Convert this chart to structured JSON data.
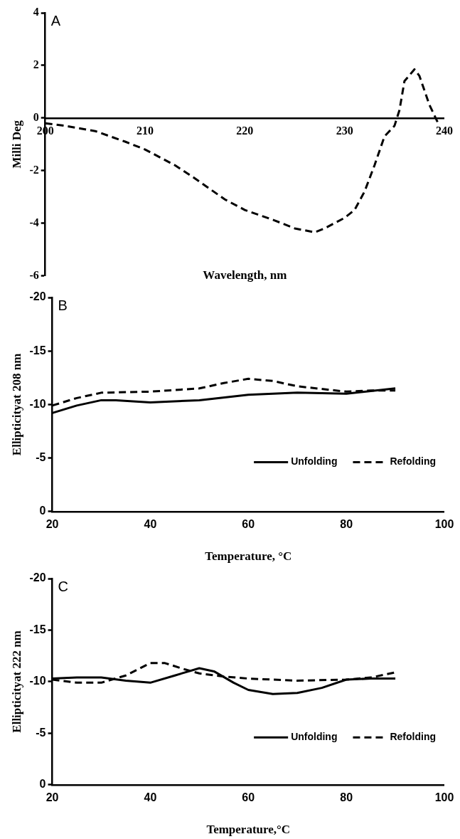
{
  "chart_data": [
    {
      "type": "line",
      "ylabel": "Milli Deg",
      "xlabel": "Wavelength, nm",
      "annotations": [
        "A"
      ],
      "xlim": [
        200,
        240
      ],
      "xticks": [
        200,
        210,
        220,
        230,
        240
      ],
      "ylim": [
        -6,
        4
      ],
      "yticks": [
        -6,
        -4,
        -2,
        0,
        2,
        4
      ],
      "grid": false,
      "legend": false,
      "marker": "none",
      "series": [
        {
          "color": "#000000",
          "line_style": "dashed",
          "x": [
            200,
            202,
            205,
            208,
            210,
            213,
            215,
            218,
            220,
            223,
            225,
            227,
            228,
            230,
            231,
            232,
            233,
            234,
            235,
            235.5,
            236,
            237,
            237.5,
            238.5,
            239.5
          ],
          "values": [
            -0.2,
            -0.3,
            -0.5,
            -0.9,
            -1.2,
            -1.8,
            -2.3,
            -3.1,
            -3.5,
            -3.9,
            -4.2,
            -4.35,
            -4.2,
            -3.8,
            -3.5,
            -2.8,
            -1.8,
            -0.7,
            -0.3,
            0.3,
            1.4,
            1.85,
            1.6,
            0.5,
            -0.3
          ]
        }
      ]
    },
    {
      "type": "line",
      "ylabel": "Ellipticityat 208 nm",
      "xlabel": "Temperature, °C",
      "annotations": [
        "B"
      ],
      "xlim": [
        20,
        100
      ],
      "xticks": [
        20,
        40,
        60,
        80,
        100
      ],
      "ylim": [
        0,
        -20
      ],
      "yticks": [
        0,
        -5,
        -10,
        -15,
        -20
      ],
      "grid": false,
      "legend": "bottom right",
      "marker": "none",
      "series": [
        {
          "name": "Unfolding",
          "color": "#000000",
          "line_style": "solid",
          "x": [
            20,
            25,
            30,
            33,
            40,
            50,
            60,
            70,
            80,
            90
          ],
          "values": [
            -9.2,
            -9.9,
            -10.4,
            -10.4,
            -10.2,
            -10.4,
            -10.9,
            -11.1,
            -11.0,
            -11.5
          ]
        },
        {
          "name": "Refolding",
          "color": "#000000",
          "line_style": "dashed",
          "x": [
            20,
            25,
            30,
            40,
            50,
            55,
            60,
            65,
            70,
            80,
            85,
            90
          ],
          "values": [
            -9.9,
            -10.6,
            -11.1,
            -11.2,
            -11.5,
            -12.0,
            -12.4,
            -12.2,
            -11.7,
            -11.2,
            -11.3,
            -11.3
          ]
        }
      ]
    },
    {
      "type": "line",
      "ylabel": "Ellipticityat 222 nm",
      "xlabel": "Temperature,°C",
      "annotations": [
        "C"
      ],
      "xlim": [
        20,
        100
      ],
      "xticks": [
        20,
        40,
        60,
        80,
        100
      ],
      "ylim": [
        0,
        -20
      ],
      "yticks": [
        0,
        -5,
        -10,
        -15,
        -20
      ],
      "grid": false,
      "legend": "bottom right",
      "marker": "none",
      "series": [
        {
          "name": "Unfolding",
          "color": "#000000",
          "line_style": "solid",
          "x": [
            20,
            25,
            30,
            35,
            40,
            45,
            50,
            53,
            57,
            60,
            65,
            70,
            75,
            80,
            85,
            90
          ],
          "values": [
            -10.3,
            -10.4,
            -10.4,
            -10.1,
            -9.9,
            -10.6,
            -11.3,
            -11.0,
            -9.9,
            -9.2,
            -8.8,
            -8.9,
            -9.4,
            -10.2,
            -10.3,
            -10.3
          ]
        },
        {
          "name": "Refolding",
          "color": "#000000",
          "line_style": "dashed",
          "x": [
            20,
            25,
            30,
            35,
            40,
            43,
            47,
            50,
            55,
            60,
            70,
            80,
            85,
            90
          ],
          "values": [
            -10.2,
            -9.9,
            -9.9,
            -10.6,
            -11.8,
            -11.8,
            -11.2,
            -10.8,
            -10.5,
            -10.3,
            -10.1,
            -10.2,
            -10.4,
            -10.9
          ]
        }
      ]
    }
  ]
}
